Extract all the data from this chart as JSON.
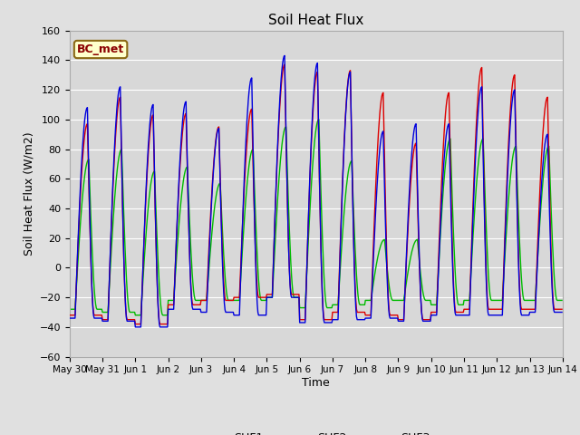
{
  "title": "Soil Heat Flux",
  "ylabel": "Soil Heat Flux (W/m2)",
  "xlabel": "Time",
  "ylim": [
    -60,
    160
  ],
  "yticks": [
    -60,
    -40,
    -20,
    0,
    20,
    40,
    60,
    80,
    100,
    120,
    140,
    160
  ],
  "fig_bg": "#e0e0e0",
  "plot_bg": "#d8d8d8",
  "grid_color": "#ffffff",
  "annotation_text": "BC_met",
  "annotation_fg": "#8b0000",
  "annotation_bg": "#ffffcc",
  "annotation_border": "#8b6914",
  "colors": {
    "SHF1": "#dd0000",
    "SHF2": "#0000dd",
    "SHF3": "#00bb00"
  },
  "x_tick_labels": [
    "May 30",
    "May 31",
    "Jun 1",
    "Jun 2",
    "Jun 3",
    "Jun 4",
    "Jun 5",
    "Jun 6",
    "Jun 7",
    "Jun 8",
    "Jun 9",
    "Jun 10",
    "Jun 11",
    "Jun 12",
    "Jun 13",
    "Jun 14"
  ],
  "n_days": 15,
  "dt_hours": 0.5,
  "day_peaks_shf1": [
    97,
    115,
    103,
    104,
    95,
    107,
    137,
    132,
    133,
    118,
    84,
    118,
    135,
    130,
    115
  ],
  "day_peaks_shf2": [
    108,
    122,
    110,
    112,
    94,
    128,
    143,
    138,
    132,
    92,
    97,
    97,
    122,
    120,
    90
  ],
  "day_peaks_shf3": [
    73,
    80,
    65,
    68,
    57,
    80,
    95,
    100,
    72,
    19,
    19,
    87,
    87,
    82,
    82
  ],
  "day_mins_shf1": [
    -32,
    -35,
    -38,
    -25,
    -22,
    -20,
    -18,
    -35,
    -30,
    -32,
    -35,
    -30,
    -28,
    -28,
    -28
  ],
  "day_mins_shf2": [
    -34,
    -36,
    -40,
    -28,
    -30,
    -32,
    -20,
    -37,
    -35,
    -34,
    -36,
    -32,
    -32,
    -32,
    -30
  ],
  "day_mins_shf3": [
    -28,
    -30,
    -32,
    -22,
    -22,
    -22,
    -20,
    -27,
    -25,
    -22,
    -22,
    -25,
    -22,
    -22,
    -22
  ],
  "peak_hour_shf1": 13.0,
  "peak_hour_shf2": 13.0,
  "peak_hour_shf3": 14.0,
  "trough_hour": 4.0,
  "rise_hours": 9.0,
  "fall_hours": 5.0
}
